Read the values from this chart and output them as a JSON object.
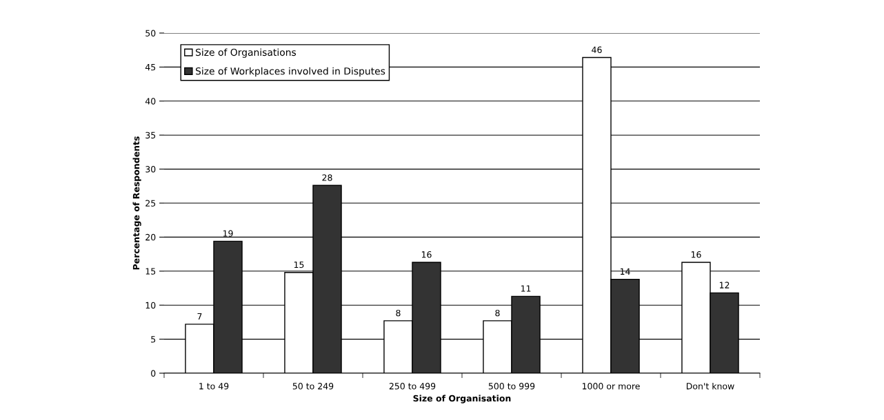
{
  "chart_data": {
    "type": "bar",
    "xlabel": "Size of Organisation",
    "ylabel": "Percentage of Respondents",
    "categories": [
      "1 to 49",
      "50 to 249",
      "250 to 499",
      "500 to 999",
      "1000 or more",
      "Don't know"
    ],
    "series": [
      {
        "name": "Size of Organisations",
        "color": "#ffffff",
        "values": [
          7.2,
          14.8,
          7.7,
          7.7,
          46.4,
          16.3
        ],
        "value_labels": [
          "7",
          "15",
          "8",
          "8",
          "46",
          "16"
        ]
      },
      {
        "name": "Size of Workplaces involved in Disputes",
        "color": "#333333",
        "values": [
          19.4,
          27.6,
          16.3,
          11.3,
          13.8,
          11.8
        ],
        "value_labels": [
          "19",
          "28",
          "16",
          "11",
          "14",
          "12"
        ]
      }
    ],
    "ylim": [
      0,
      50
    ],
    "yticks": [
      0,
      5,
      10,
      15,
      20,
      25,
      30,
      35,
      40,
      45,
      50
    ],
    "grid": "y",
    "legend": "top left"
  }
}
